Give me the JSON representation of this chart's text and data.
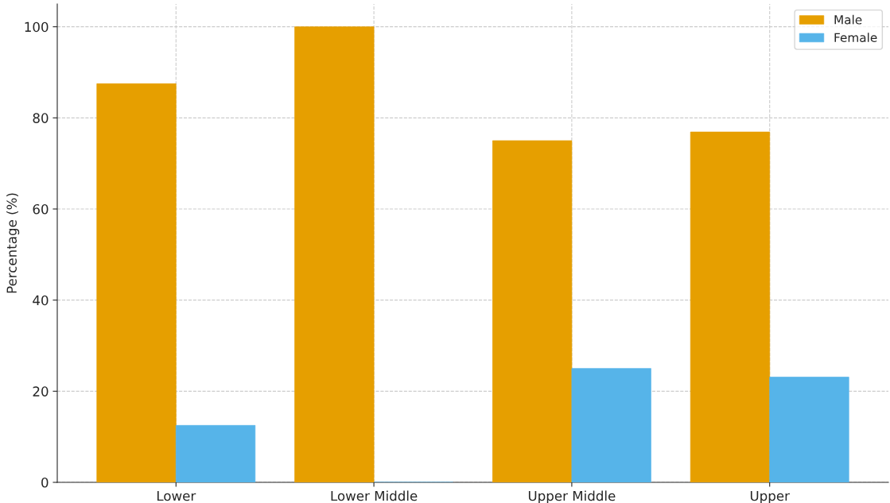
{
  "chart_data": {
    "type": "bar",
    "ylabel": "Percentage (%)",
    "categories": [
      "Lower",
      "Lower Middle",
      "Upper Middle",
      "Upper"
    ],
    "series": [
      {
        "name": "Male",
        "color": "#e69f00",
        "values": [
          87.5,
          100,
          75,
          76.9
        ]
      },
      {
        "name": "Female",
        "color": "#56b4e9",
        "values": [
          12.5,
          0,
          25,
          23.1
        ]
      }
    ],
    "ylim": [
      0,
      105
    ],
    "yticks": [
      0,
      20,
      40,
      60,
      80,
      100
    ],
    "grid": true,
    "legend": "top right"
  }
}
